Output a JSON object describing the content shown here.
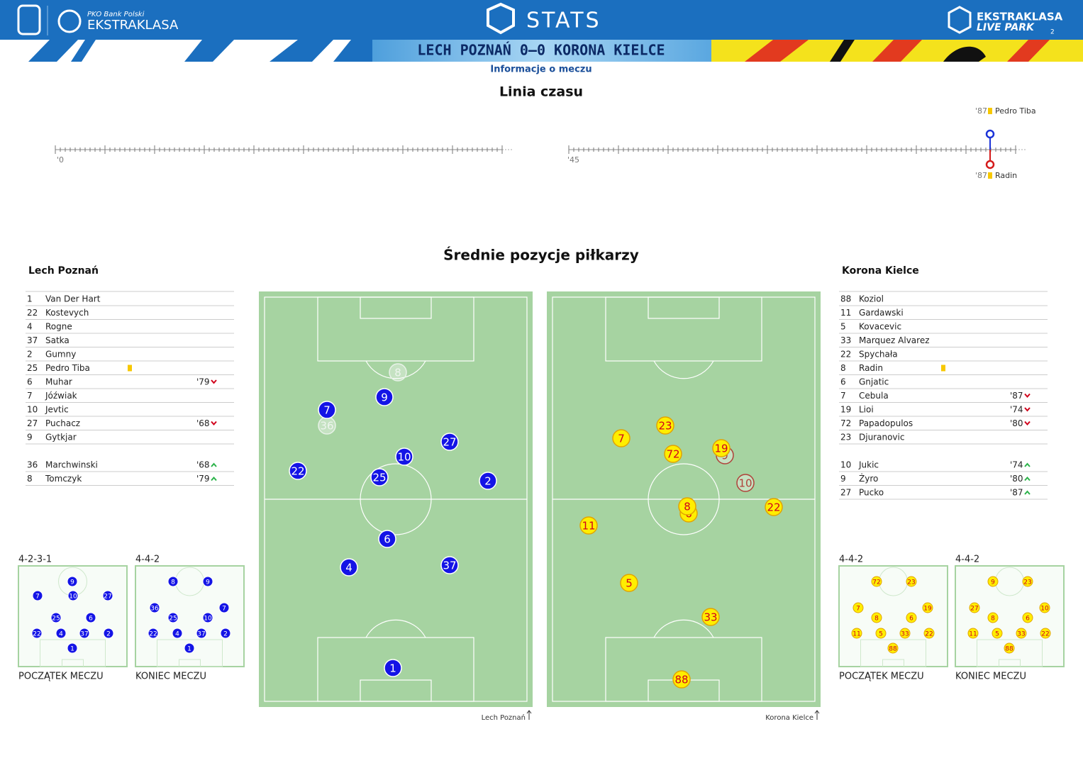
{
  "header": {
    "sponsor": "PKO Bank Polski",
    "league": "EKSTRAKLASA",
    "app": "STATS",
    "partner_top": "EKSTRAKLASA",
    "partner_bottom": "LIVE PARK",
    "partner_badge": "2",
    "match": "LECH POZNAŃ 0–0 KORONA KIELCE",
    "info_link": "Informacje o meczu"
  },
  "timeline": {
    "title": "Linia czasu",
    "first_half_start": "'0",
    "second_half_start": "'45",
    "events": [
      {
        "minute": "'87",
        "player": "Pedro Tiba",
        "card": "yellow",
        "team": "home"
      },
      {
        "minute": "'87",
        "player": "Radin",
        "card": "yellow",
        "team": "away"
      }
    ]
  },
  "positions": {
    "title": "Średnie pozycje piłkarzy",
    "teams": [
      {
        "name": "Lech Poznań",
        "color": "#1414e6",
        "lineup": [
          {
            "number": 1,
            "name": "Van Der Hart"
          },
          {
            "number": 22,
            "name": "Kostevych"
          },
          {
            "number": 4,
            "name": "Rogne"
          },
          {
            "number": 37,
            "name": "Satka"
          },
          {
            "number": 2,
            "name": "Gumny"
          },
          {
            "number": 25,
            "name": "Pedro Tiba",
            "card": "yellow"
          },
          {
            "number": 6,
            "name": "Muhar",
            "sub_minute": "'79"
          },
          {
            "number": 7,
            "name": "Jóźwiak"
          },
          {
            "number": 10,
            "name": "Jevtic"
          },
          {
            "number": 27,
            "name": "Puchacz",
            "sub_minute": "'68"
          },
          {
            "number": 9,
            "name": "Gytkjar"
          }
        ],
        "subs": [
          {
            "number": 36,
            "name": "Marchwinski",
            "sub_minute": "'68"
          },
          {
            "number": 8,
            "name": "Tomczyk",
            "sub_minute": "'79"
          }
        ],
        "formations": [
          {
            "shape": "4-2-3-1",
            "label": "POCZĄTEK MECZU"
          },
          {
            "shape": "4-4-2",
            "label": "KONIEC MECZU"
          }
        ]
      },
      {
        "name": "Korona Kielce",
        "color": "#ffee00",
        "lineup": [
          {
            "number": 88,
            "name": "Koziol"
          },
          {
            "number": 11,
            "name": "Gardawski"
          },
          {
            "number": 5,
            "name": "Kovacevic"
          },
          {
            "number": 33,
            "name": "Marquez Alvarez"
          },
          {
            "number": 22,
            "name": "Spychała"
          },
          {
            "number": 8,
            "name": "Radin",
            "card": "yellow"
          },
          {
            "number": 6,
            "name": "Gnjatic"
          },
          {
            "number": 7,
            "name": "Cebula",
            "sub_minute": "'87"
          },
          {
            "number": 19,
            "name": "Lioi",
            "sub_minute": "'74"
          },
          {
            "number": 72,
            "name": "Papadopulos",
            "sub_minute": "'80"
          },
          {
            "number": 23,
            "name": "Djuranovic"
          }
        ],
        "subs": [
          {
            "number": 10,
            "name": "Jukic",
            "sub_minute": "'74"
          },
          {
            "number": 9,
            "name": "Żyro",
            "sub_minute": "'80"
          },
          {
            "number": 27,
            "name": "Pucko",
            "sub_minute": "'87"
          }
        ],
        "formations": [
          {
            "shape": "4-4-2",
            "label": "POCZĄTEK MECZU"
          },
          {
            "shape": "4-4-2",
            "label": "KONIEC MECZU"
          }
        ]
      }
    ]
  }
}
